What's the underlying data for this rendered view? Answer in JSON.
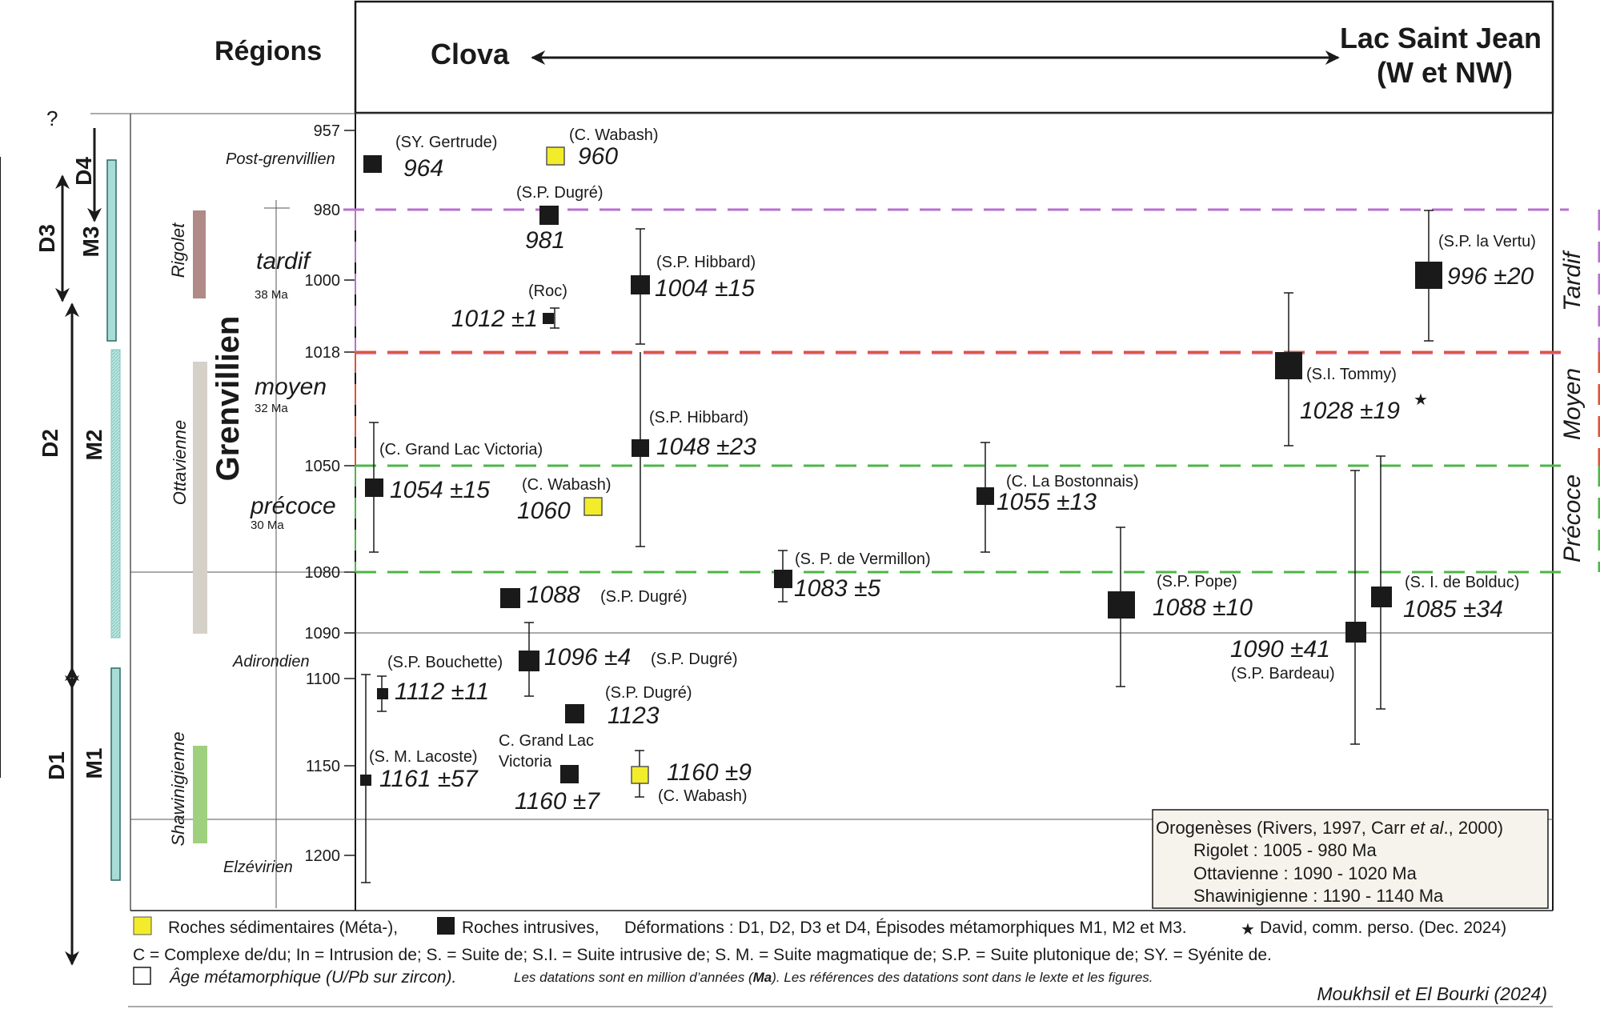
{
  "header": {
    "regions_label": "Régions",
    "left_region": "Clova",
    "right_region_line1": "Lac Saint Jean",
    "right_region_line2": "(W et NW)",
    "question_mark": "?"
  },
  "ticks": [
    {
      "label": "957"
    },
    {
      "label": "980"
    },
    {
      "label": "1000"
    },
    {
      "label": "1018"
    },
    {
      "label": "1050"
    },
    {
      "label": "1080"
    },
    {
      "label": "1090"
    },
    {
      "label": "1100"
    },
    {
      "label": "1150"
    },
    {
      "label": "1200"
    }
  ],
  "deformations": {
    "d4": "D4",
    "d3": "D3",
    "d2": "D2",
    "d1": "D1"
  },
  "metamorphism": {
    "m3": "M3",
    "m2": "M2",
    "m1": "M1"
  },
  "orogenies": {
    "rigolet": "Rigolet",
    "ottavienne": "Ottavienne",
    "shawinigienne": "Shawinigienne",
    "post": "Post-grenvillien",
    "adirondien": "Adirondien",
    "elzevirien": "Elzévirien"
  },
  "grenvillien": {
    "title": "Grenvillien",
    "tardif": "tardif",
    "tardif_dur": "38 Ma",
    "moyen": "moyen",
    "moyen_dur": "32 Ma",
    "precoce": "précoce",
    "precoce_dur": "30 Ma"
  },
  "right_labels": {
    "tardif": "Tardif",
    "moyen": "Moyen",
    "precoce": "Précoce"
  },
  "samples": {
    "sy_gertrude": {
      "name": "(SY. Gertrude)",
      "age": "964",
      "type": "intrusive"
    },
    "c_wabash_960": {
      "name": "(C. Wabash)",
      "age": "960",
      "type": "sedimentary"
    },
    "sp_dugre_981": {
      "name": "(S.P. Dugré)",
      "age": "981",
      "type": "intrusive"
    },
    "roc": {
      "name": "(Roc)",
      "age": "1012 ±1",
      "type": "intrusive"
    },
    "sp_hibbard_1004": {
      "name": "(S.P. Hibbard)",
      "age": "1004 ±15",
      "type": "intrusive"
    },
    "sp_la_vertu": {
      "name": "(S.P. la Vertu)",
      "age": "996 ±20",
      "type": "intrusive"
    },
    "si_tommy": {
      "name": "(S.I. Tommy)",
      "age": "1028 ±19",
      "type": "intrusive",
      "star": "★"
    },
    "sp_hibbard_1048": {
      "name": "(S.P. Hibbard)",
      "age": "1048 ±23",
      "type": "intrusive"
    },
    "c_grand_lac_victoria": {
      "name": "(C. Grand  Lac Victoria)",
      "age": "1054 ±15",
      "type": "intrusive"
    },
    "c_wabash_1060": {
      "name": "(C. Wabash)",
      "age": "1060",
      "type": "sedimentary"
    },
    "c_la_bostonnais": {
      "name": "(C. La Bostonnais)",
      "age": "1055 ±13",
      "type": "intrusive"
    },
    "sp_de_vermillon": {
      "name": "(S. P. de Vermillon)",
      "age": "1083 ±5",
      "type": "intrusive"
    },
    "sp_dugre_1088": {
      "name": "(S.P. Dugré)",
      "age": "1088",
      "type": "intrusive"
    },
    "sp_pope": {
      "name": "(S.P. Pope)",
      "age": "1088 ±10",
      "type": "intrusive"
    },
    "si_de_bolduc": {
      "name": "(S. I. de Bolduc)",
      "age": "1085 ±34",
      "type": "intrusive"
    },
    "sp_bardeau": {
      "name": "(S.P. Bardeau)",
      "age": "1090 ±41",
      "type": "intrusive"
    },
    "sp_bouchette": {
      "name": "(S.P. Bouchette)",
      "age": "1112 ±11",
      "type": "intrusive"
    },
    "sp_dugre_1096": {
      "name": "(S.P. Dugré)",
      "age": "1096 ±4",
      "type": "intrusive"
    },
    "sp_dugre_1123": {
      "name": "(S.P. Dugré)",
      "age": "1123",
      "type": "intrusive"
    },
    "sm_lacoste": {
      "name": "(S. M. Lacoste)",
      "age": "1161 ±57",
      "type": "intrusive"
    },
    "c_grand_lac_victoria_2": {
      "name_line1": "C. Grand Lac",
      "name_line2": "Victoria",
      "age": "1160 ±7",
      "type": "intrusive"
    },
    "c_wabash_1160": {
      "name": "(C. Wabash)",
      "age": "1160 ±9",
      "type": "sedimentary"
    }
  },
  "orogenies_box": {
    "title_prefix": "Orogenèses (Rivers, 1997, Carr ",
    "title_ital": "et al",
    "title_suffix": "., 2000)",
    "line1": "Rigolet : 1005 - 980 Ma",
    "line2": "Ottavienne : 1090 - 1020 Ma",
    "line3": "Shawinigienne : 1190 - 1140 Ma"
  },
  "legend": {
    "sedimentary": "Roches sédimentaires (Méta-),",
    "intrusive": "Roches intrusives,",
    "deformations": "Déformations : D1, D2, D3 et D4, Épisodes métamorphiques M1, M2 et M3.",
    "david": "David, comm. perso. (Dec. 2024)",
    "line2": "C = Complexe de/du; In = Intrusion de; S. = Suite de; S.I. = Suite intrusive de; S. M. = Suite magmatique de; S.P. = Suite plutonique de; SY. = Syénite de.",
    "age_meta": "Âge métamorphique (U/Pb sur zircon).",
    "note_prefix": "Les datations  sont en million d’années (",
    "note_unit": "Ma",
    "note_suffix": "). Les références des datations sont dans le lexte et les figures.",
    "credit": "Moukhsil et El Bourki  (2024)"
  },
  "colors": {
    "sedimentary": "#f2ec2a",
    "intrusive": "#1a1a1a",
    "rigolet_bar": "#b08a86",
    "ottavienne_bar": "#d6d1c8",
    "shawinigienne_bar": "#9fd07e",
    "meta_bar": "#a8dcd6",
    "dash_purple": "#b96fd1",
    "dash_red": "#e0523a",
    "dash_green": "#4eb647"
  }
}
